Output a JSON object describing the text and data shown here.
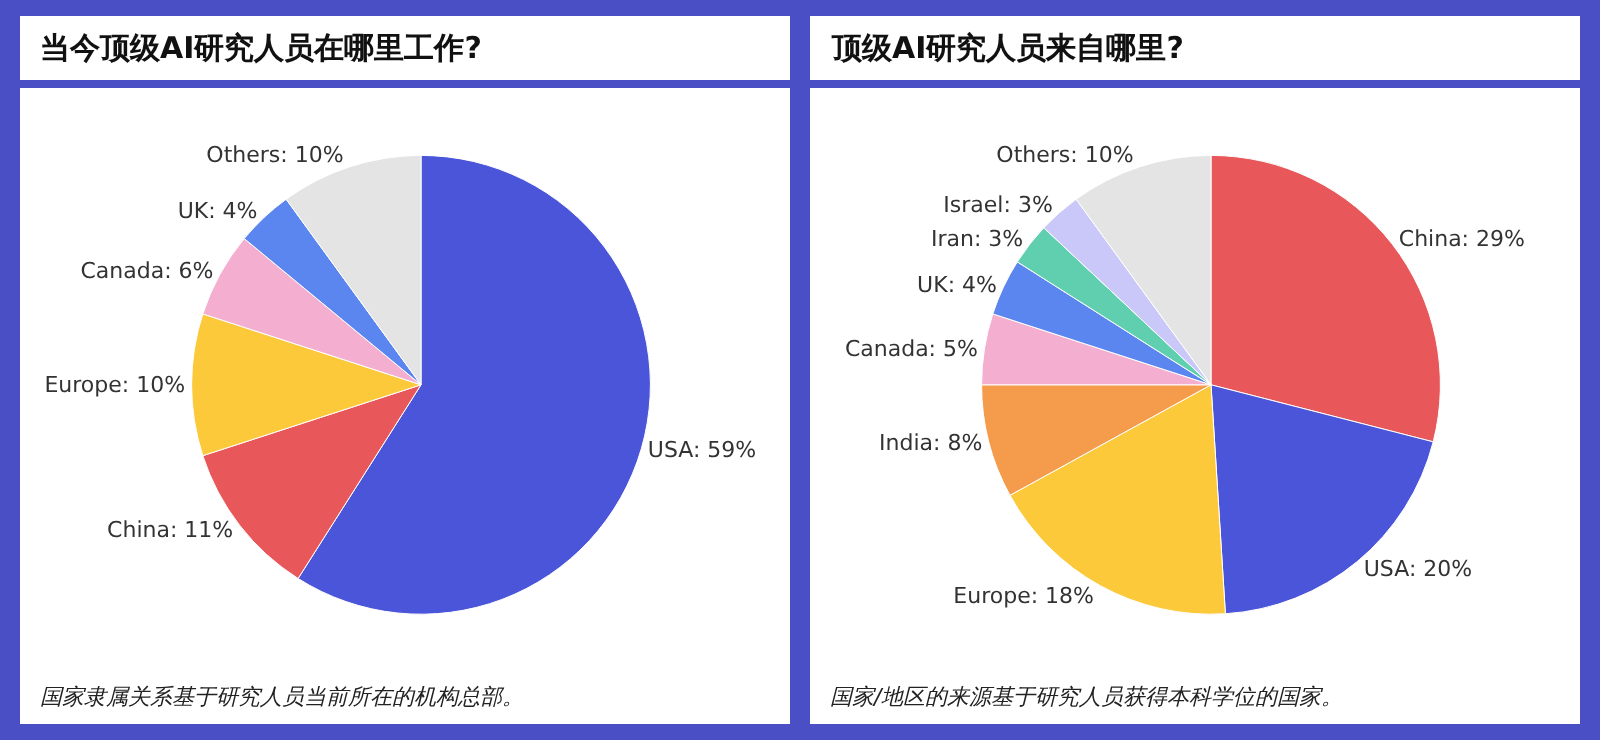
{
  "chart_data": [
    {
      "type": "pie",
      "title": "当今顶级AI研究人员在哪里工作?",
      "categories": [
        "USA",
        "China",
        "Europe",
        "Canada",
        "UK",
        "Others"
      ],
      "values": [
        59,
        11,
        10,
        6,
        4,
        10
      ],
      "value_labels": [
        "59%",
        "11%",
        "10%",
        "6%",
        "4%",
        "10%"
      ],
      "colors": [
        "#4a55d9",
        "#e8575a",
        "#fcc93a",
        "#f4aed0",
        "#5b86f0",
        "#e4e4e4"
      ],
      "annotations": [
        "国家隶属关系基于研究人员当前所在的机构总部。"
      ]
    },
    {
      "type": "pie",
      "title": "顶级AI研究人员来自哪里?",
      "categories": [
        "China",
        "USA",
        "Europe",
        "India",
        "Canada",
        "UK",
        "Iran",
        "Israel",
        "Others"
      ],
      "values": [
        29,
        20,
        18,
        8,
        5,
        4,
        3,
        3,
        10
      ],
      "value_labels": [
        "29%",
        "20%",
        "18%",
        "8%",
        "5%",
        "4%",
        "3%",
        "3%",
        "10%"
      ],
      "colors": [
        "#e8575a",
        "#4a55d9",
        "#fcc93a",
        "#f49c4c",
        "#f4aed0",
        "#5b86f0",
        "#5fcfb0",
        "#c9c8f8",
        "#e4e4e4"
      ],
      "annotations": [
        "国家/地区的来源基于研究人员获得本科学位的国家。"
      ]
    }
  ]
}
